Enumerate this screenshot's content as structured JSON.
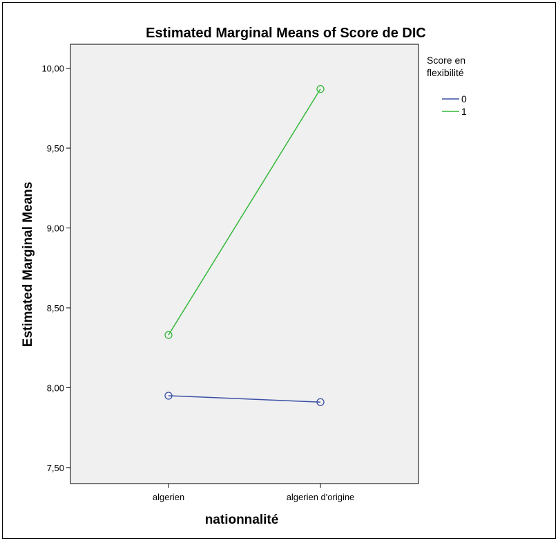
{
  "chart_data": {
    "type": "line",
    "title": "Estimated Marginal Means of Score de DIC",
    "xlabel": "nationnalité",
    "ylabel": "Estimated Marginal Means",
    "categories": [
      "algerien",
      "algerien d'origine"
    ],
    "ylim": [
      7.4,
      10.15
    ],
    "yticks": [
      7.5,
      8.0,
      8.5,
      9.0,
      9.5,
      10.0
    ],
    "ytick_labels": [
      "7,50",
      "8,00",
      "8,50",
      "9,00",
      "9,50",
      "10,00"
    ],
    "legend": {
      "title_lines": [
        "Score en",
        "flexibilité"
      ],
      "placement": "right"
    },
    "grid": false,
    "series": [
      {
        "name": "0",
        "color": "#3a4fa6",
        "values": [
          7.95,
          7.91
        ]
      },
      {
        "name": "1",
        "color": "#33b838",
        "values": [
          8.33,
          9.87
        ]
      }
    ]
  }
}
